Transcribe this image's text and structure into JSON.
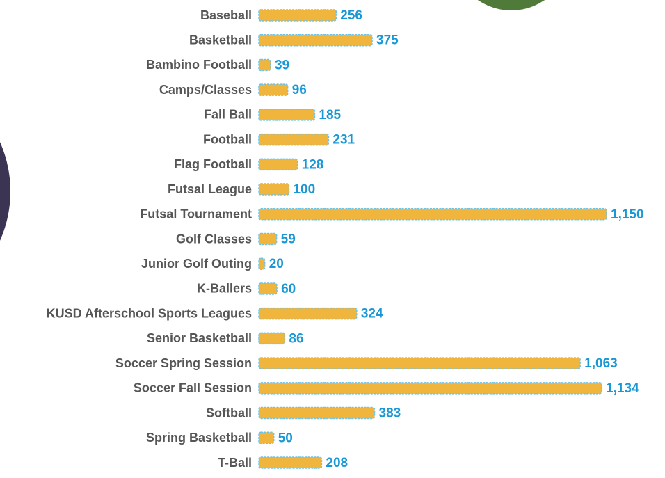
{
  "chart_data": {
    "type": "bar",
    "orientation": "horizontal",
    "categories": [
      "Baseball",
      "Basketball",
      "Bambino Football",
      "Camps/Classes",
      "Fall Ball",
      "Football",
      "Flag Football",
      "Futsal League",
      "Futsal Tournament",
      "Golf Classes",
      "Junior Golf Outing",
      "K-Ballers",
      "KUSD Afterschool Sports Leagues",
      "Senior Basketball",
      "Soccer Spring Session",
      "Soccer Fall Session",
      "Softball",
      "Spring Basketball",
      "T-Ball"
    ],
    "values": [
      256,
      375,
      39,
      96,
      185,
      231,
      128,
      100,
      1150,
      59,
      20,
      60,
      324,
      86,
      1063,
      1134,
      383,
      50,
      208
    ],
    "value_labels": [
      "256",
      "375",
      "39",
      "96",
      "185",
      "231",
      "128",
      "100",
      "1,150",
      "59",
      "20",
      "60",
      "324",
      "86",
      "1,063",
      "1,134",
      "383",
      "50",
      "208"
    ],
    "color": "#f0b53d",
    "edge_color": "#6cc3ea"
  }
}
